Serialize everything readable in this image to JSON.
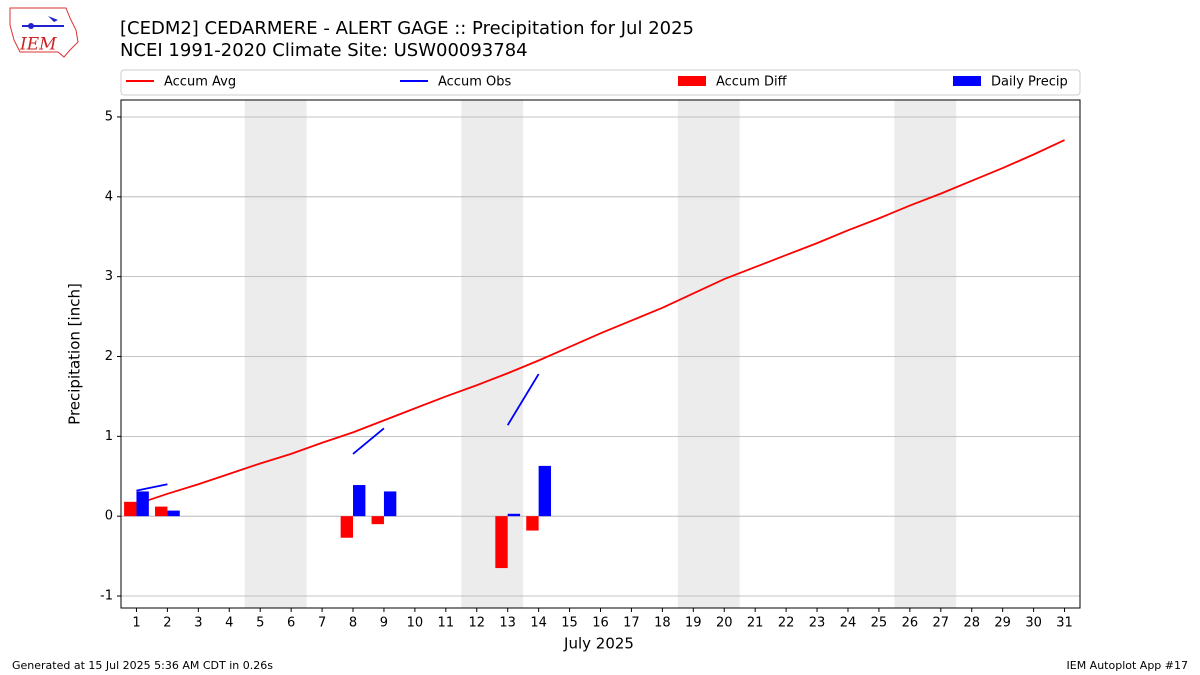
{
  "chart_data": {
    "type": "combo",
    "title": "[CEDM2] CEDARMERE - ALERT GAGE :: Precipitation for Jul 2025",
    "subtitle": "NCEI 1991-2020 Climate Site: USW00093784",
    "logo_text": "IEM",
    "x_label": "July 2025",
    "y_label": "Precipitation [inch]",
    "x": [
      1,
      2,
      3,
      4,
      5,
      6,
      7,
      8,
      9,
      10,
      11,
      12,
      13,
      14,
      15,
      16,
      17,
      18,
      19,
      20,
      21,
      22,
      23,
      24,
      25,
      26,
      27,
      28,
      29,
      30,
      31
    ],
    "xlim": [
      0.5,
      31.5
    ],
    "xticks": [
      1,
      2,
      3,
      4,
      5,
      6,
      7,
      8,
      9,
      10,
      11,
      12,
      13,
      14,
      15,
      16,
      17,
      18,
      19,
      20,
      21,
      22,
      23,
      24,
      25,
      26,
      27,
      28,
      29,
      30,
      31
    ],
    "ylim": [
      -1.15,
      5.2125
    ],
    "yticks": [
      -1,
      0,
      1,
      2,
      3,
      4,
      5
    ],
    "grid": true,
    "weekend_spans": [
      [
        4.5,
        6.5
      ],
      [
        11.5,
        13.5
      ],
      [
        18.5,
        20.5
      ],
      [
        25.5,
        27.5
      ]
    ],
    "series": [
      {
        "name": "Accum Avg",
        "type": "line",
        "color": "#ff0000",
        "values": [
          0.15,
          0.28,
          0.4,
          0.53,
          0.66,
          0.78,
          0.92,
          1.05,
          1.2,
          1.35,
          1.5,
          1.64,
          1.79,
          1.95,
          2.12,
          2.29,
          2.45,
          2.61,
          2.79,
          2.97,
          3.12,
          3.27,
          3.42,
          3.58,
          3.73,
          3.89,
          4.04,
          4.2,
          4.36,
          4.53,
          4.71
        ]
      },
      {
        "name": "Accum Obs",
        "type": "line",
        "color": "#0000ff",
        "values": [
          0.32,
          0.4,
          null,
          null,
          null,
          null,
          null,
          0.78,
          1.1,
          null,
          null,
          null,
          1.14,
          1.78,
          null,
          null,
          null,
          null,
          null,
          null,
          null,
          null,
          null,
          null,
          null,
          null,
          null,
          null,
          null,
          null,
          null
        ]
      },
      {
        "name": "Accum Diff",
        "type": "bar",
        "color": "#ff0000",
        "values": [
          0.18,
          0.12,
          null,
          null,
          null,
          null,
          null,
          -0.27,
          -0.1,
          null,
          null,
          null,
          -0.65,
          -0.18,
          null,
          null,
          null,
          null,
          null,
          null,
          null,
          null,
          null,
          null,
          null,
          null,
          null,
          null,
          null,
          null,
          null
        ]
      },
      {
        "name": "Daily Precip",
        "type": "bar",
        "color": "#0000ff",
        "values": [
          0.31,
          0.07,
          null,
          null,
          null,
          null,
          null,
          0.39,
          0.31,
          null,
          null,
          null,
          0.03,
          0.63,
          null,
          null,
          null,
          null,
          null,
          null,
          null,
          null,
          null,
          null,
          null,
          null,
          null,
          null,
          null,
          null,
          null
        ]
      }
    ],
    "footer_left": "Generated at 15 Jul 2025 5:36 AM CDT in 0.26s",
    "footer_right": "IEM Autoplot App #17"
  }
}
